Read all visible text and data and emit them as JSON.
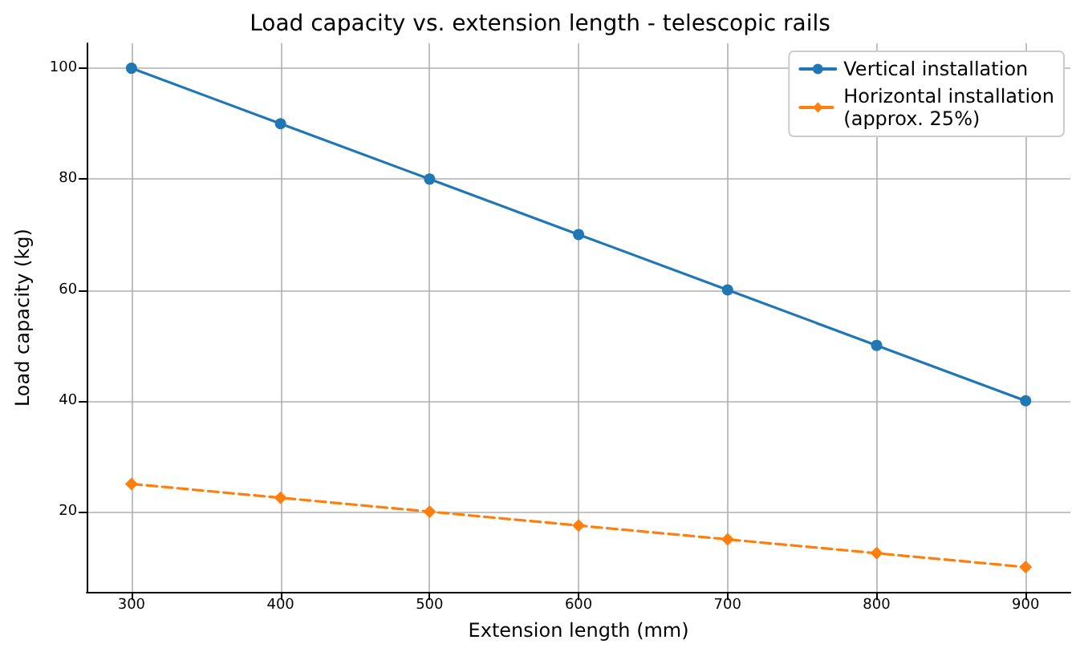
{
  "chart_data": {
    "type": "line",
    "title": "Load capacity vs. extension length - telescopic rails",
    "xlabel": "Extension length (mm)",
    "ylabel": "Load capacity (kg)",
    "x": [
      300,
      400,
      500,
      600,
      700,
      800,
      900
    ],
    "series": [
      {
        "name": "Vertical installation",
        "color": "#1f77b4",
        "values": [
          100,
          90,
          80,
          70,
          60,
          50,
          40
        ],
        "line_style": "solid",
        "marker": "circle"
      },
      {
        "name": "Horizontal installation\n(approx. 25%)",
        "color": "#ff7f0e",
        "values": [
          25,
          22.5,
          20,
          17.5,
          15,
          12.5,
          10
        ],
        "line_style": "dashed",
        "marker": "diamond"
      }
    ],
    "xlim": [
      270,
      930
    ],
    "xticks": [
      300,
      400,
      500,
      600,
      700,
      800,
      900
    ],
    "ylim": [
      5.5,
      104.5
    ],
    "yticks": [
      20,
      40,
      60,
      80,
      100
    ],
    "grid": true,
    "legend": "top right"
  }
}
